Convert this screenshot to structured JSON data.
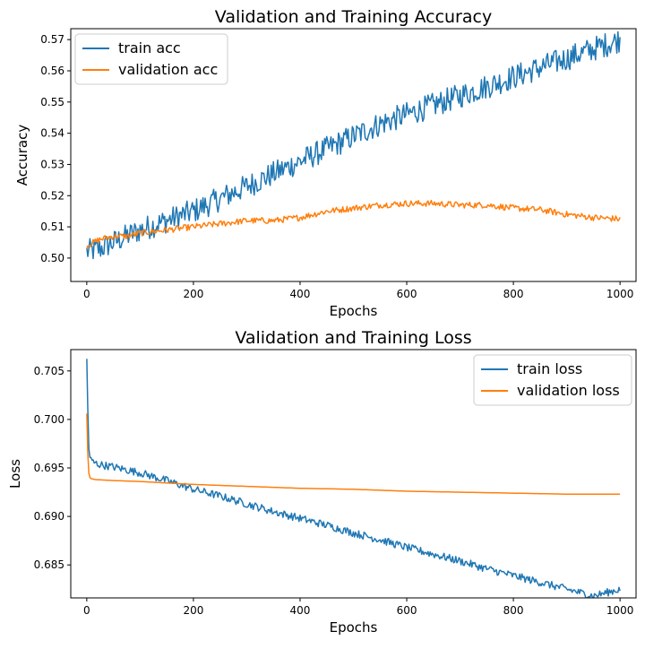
{
  "chart_data": [
    {
      "type": "line",
      "title": "Validation and Training Accuracy",
      "xlabel": "Epochs",
      "ylabel": "Accuracy",
      "xlim": [
        -30,
        1030
      ],
      "ylim": [
        0.4925,
        0.5735
      ],
      "xticks": [
        0,
        200,
        400,
        600,
        800,
        1000
      ],
      "yticks": [
        0.5,
        0.51,
        0.52,
        0.53,
        0.54,
        0.55,
        0.56,
        0.57
      ],
      "ytick_labels": [
        "0.50",
        "0.51",
        "0.52",
        "0.53",
        "0.54",
        "0.55",
        "0.56",
        "0.57"
      ],
      "legend_position": "upper-left",
      "series": [
        {
          "name": "train acc",
          "color": "#1f77b4",
          "x": [
            0,
            25,
            50,
            75,
            100,
            150,
            200,
            250,
            300,
            350,
            400,
            450,
            500,
            550,
            600,
            650,
            700,
            750,
            800,
            850,
            900,
            950,
            1000
          ],
          "values": [
            0.502,
            0.503,
            0.505,
            0.507,
            0.509,
            0.512,
            0.515,
            0.519,
            0.523,
            0.527,
            0.531,
            0.535,
            0.539,
            0.543,
            0.546,
            0.549,
            0.552,
            0.555,
            0.558,
            0.561,
            0.564,
            0.567,
            0.57
          ],
          "noise_amplitude": 0.004
        },
        {
          "name": "validation acc",
          "color": "#ff7f0e",
          "x": [
            0,
            25,
            50,
            75,
            100,
            150,
            200,
            250,
            300,
            350,
            400,
            450,
            500,
            550,
            600,
            650,
            700,
            750,
            800,
            850,
            900,
            950,
            1000
          ],
          "values": [
            0.504,
            0.506,
            0.507,
            0.507,
            0.508,
            0.509,
            0.51,
            0.511,
            0.512,
            0.512,
            0.513,
            0.515,
            0.516,
            0.517,
            0.5175,
            0.5175,
            0.517,
            0.517,
            0.516,
            0.5155,
            0.514,
            0.513,
            0.5125
          ],
          "noise_amplitude": 0.001
        }
      ]
    },
    {
      "type": "line",
      "title": "Validation and Training Loss",
      "xlabel": "Epochs",
      "ylabel": "Loss",
      "xlim": [
        -30,
        1030
      ],
      "ylim": [
        0.6816,
        0.7072
      ],
      "xticks": [
        0,
        200,
        400,
        600,
        800,
        1000
      ],
      "yticks": [
        0.685,
        0.69,
        0.695,
        0.7,
        0.705
      ],
      "ytick_labels": [
        "0.685",
        "0.690",
        "0.695",
        "0.700",
        "0.705"
      ],
      "legend_position": "upper-right",
      "series": [
        {
          "name": "train loss",
          "color": "#1f77b4",
          "x": [
            0,
            1,
            2,
            3,
            5,
            8,
            12,
            20,
            50,
            100,
            150,
            200,
            250,
            300,
            350,
            400,
            450,
            500,
            550,
            600,
            650,
            700,
            750,
            800,
            850,
            900,
            950,
            1000
          ],
          "values": [
            0.7062,
            0.7045,
            0.701,
            0.698,
            0.6962,
            0.6958,
            0.6956,
            0.6954,
            0.6951,
            0.6945,
            0.6937,
            0.6928,
            0.6921,
            0.6913,
            0.6905,
            0.6898,
            0.6891,
            0.6883,
            0.6876,
            0.6868,
            0.6861,
            0.6854,
            0.6846,
            0.6839,
            0.6832,
            0.6825,
            0.6818,
            0.6825
          ],
          "noise_amplitude": 0.0004
        },
        {
          "name": "validation loss",
          "color": "#ff7f0e",
          "x": [
            0,
            1,
            2,
            3,
            5,
            8,
            15,
            50,
            100,
            200,
            300,
            400,
            500,
            600,
            700,
            800,
            900,
            1000
          ],
          "values": [
            0.7006,
            0.699,
            0.6965,
            0.6948,
            0.6941,
            0.6939,
            0.6938,
            0.6937,
            0.6936,
            0.6933,
            0.6931,
            0.6929,
            0.6928,
            0.6926,
            0.6925,
            0.6924,
            0.6923,
            0.6923
          ],
          "noise_amplitude": 0
        }
      ]
    }
  ]
}
